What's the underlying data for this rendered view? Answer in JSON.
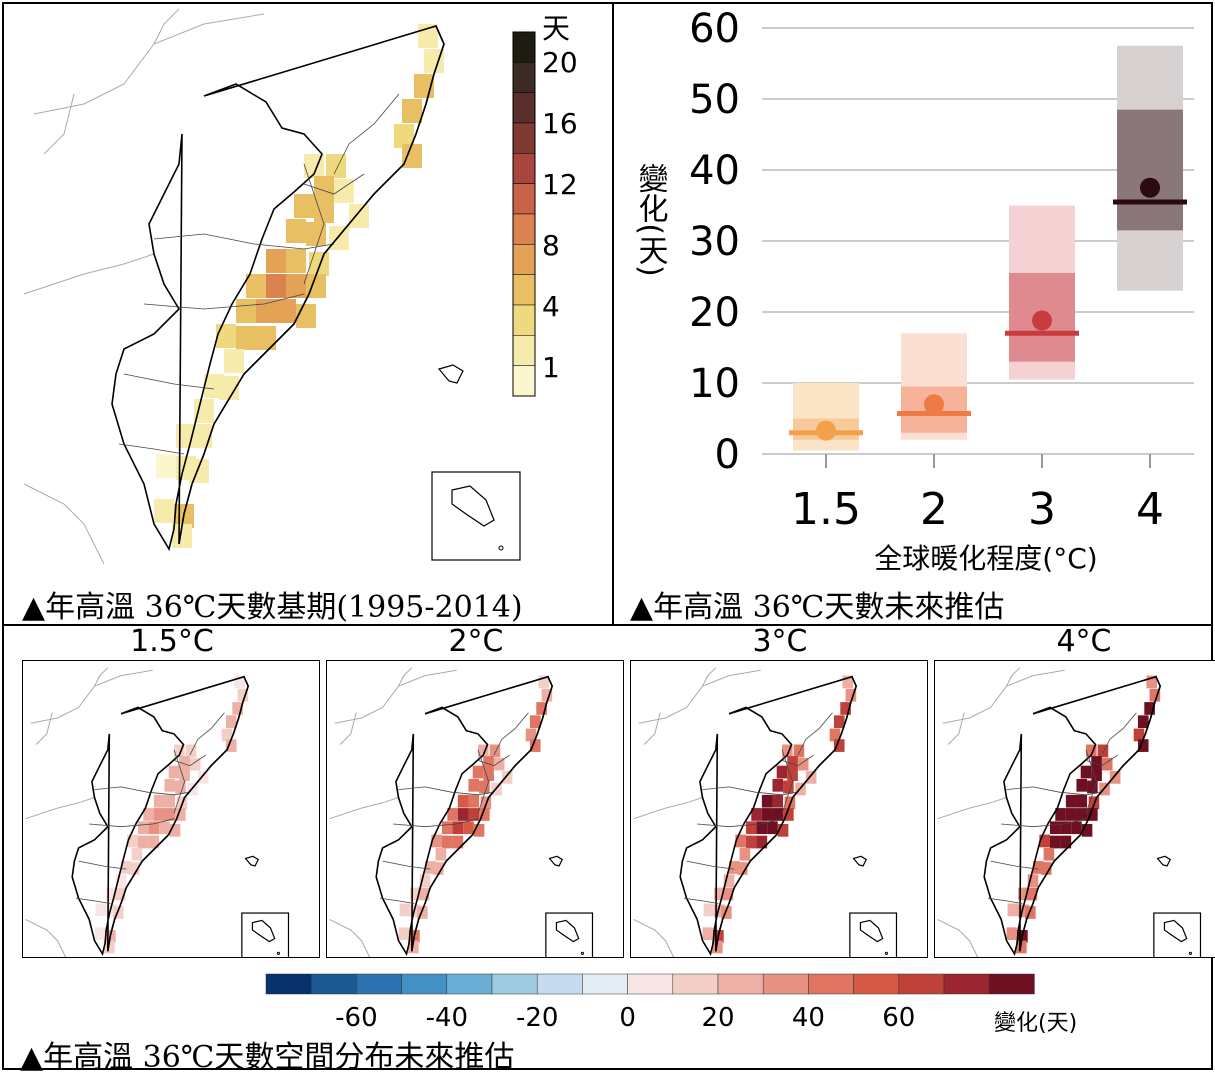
{
  "baseline_panel": {
    "caption": "▲年高溫 36℃天數基期(1995-2014)",
    "legend_unit": "天",
    "legend_ticks": [
      "20",
      "16",
      "12",
      "8",
      "4",
      "1"
    ],
    "legend_colors": [
      "#1d1c0f",
      "#3b2b24",
      "#5a2e2a",
      "#7f3a32",
      "#a8463c",
      "#c9634a",
      "#dc8250",
      "#e4a257",
      "#e8bf62",
      "#efd97f",
      "#f6ebaa",
      "#fbf6cc"
    ]
  },
  "projection_panel": {
    "caption": "▲年高溫 36℃天數未來推估",
    "chart_data": {
      "type": "box",
      "x_label": "全球暖化程度(°C)",
      "y_label": "變化(天)",
      "categories": [
        "1.5",
        "2",
        "3",
        "4"
      ],
      "ylim": [
        0,
        60
      ],
      "y_ticks": [
        0,
        10,
        20,
        30,
        40,
        50,
        60
      ],
      "grid": true,
      "series": [
        {
          "x": "1.5",
          "outer": [
            0.5,
            10
          ],
          "inner": [
            2,
            5
          ],
          "median": 3,
          "mean": 3.3,
          "color": "#f1a14a",
          "light": "#fbe3c6",
          "mid": "#f8c99a"
        },
        {
          "x": "2",
          "outer": [
            2,
            17
          ],
          "inner": [
            3,
            9.5
          ],
          "median": 5.7,
          "mean": 7,
          "color": "#ee7a45",
          "light": "#fbdfd3",
          "mid": "#f6b39a"
        },
        {
          "x": "3",
          "outer": [
            10.5,
            35
          ],
          "inner": [
            13,
            25.5
          ],
          "median": 17,
          "mean": 18.8,
          "color": "#c83b3f",
          "light": "#f5d1d3",
          "mid": "#df8a8e"
        },
        {
          "x": "4",
          "outer": [
            23,
            57.5
          ],
          "inner": [
            31.5,
            48.5
          ],
          "median": 35.5,
          "mean": 37.5,
          "color": "#2b0b10",
          "light": "#d7d1d2",
          "mid": "#8a7779"
        }
      ]
    }
  },
  "spatial_panel": {
    "caption": "▲年高溫 36℃天數空間分布未來推估",
    "maps": [
      {
        "title": "1.5°C",
        "intensity": 1
      },
      {
        "title": "2°C",
        "intensity": 2
      },
      {
        "title": "3°C",
        "intensity": 3
      },
      {
        "title": "4°C",
        "intensity": 4
      }
    ],
    "colorbar": {
      "label": "變化(天)",
      "ticks": [
        "-60",
        "-40",
        "-20",
        "0",
        "20",
        "40",
        "60"
      ],
      "colors": [
        "#08306b",
        "#1c5a96",
        "#2c72b0",
        "#4292c6",
        "#6aaed6",
        "#9ecae1",
        "#c6dbef",
        "#e4ecf6",
        "#f8e6e4",
        "#f3cfc8",
        "#eeb0a6",
        "#e89284",
        "#e07563",
        "#d65a45",
        "#c0413a",
        "#9b2530",
        "#6e0f22"
      ]
    }
  }
}
